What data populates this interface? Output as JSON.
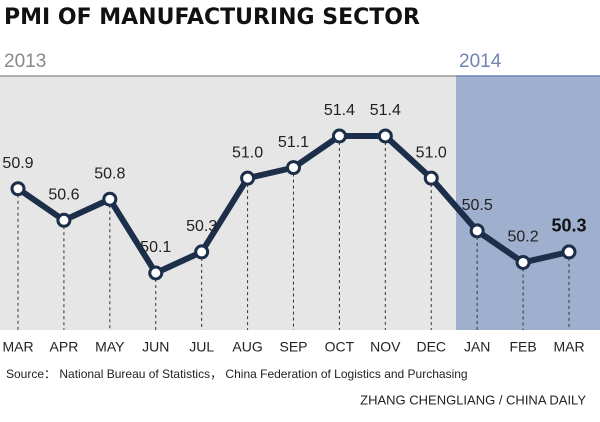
{
  "chart_data": {
    "type": "line",
    "title": "PMI OF MANUFACTURING SECTOR",
    "year_labels": [
      "2013",
      "2014"
    ],
    "categories": [
      "MAR",
      "APR",
      "MAY",
      "JUN",
      "JUL",
      "AUG",
      "SEP",
      "OCT",
      "NOV",
      "DEC",
      "JAN",
      "FEB",
      "MAR"
    ],
    "values": [
      50.9,
      50.6,
      50.8,
      50.1,
      50.3,
      51.0,
      51.1,
      51.4,
      51.4,
      51.0,
      50.5,
      50.2,
      50.3
    ],
    "value_labels": [
      "50.9",
      "50.6",
      "50.8",
      "50.1",
      "50.3",
      "51.0",
      "51.1",
      "51.4",
      "51.4",
      "51.0",
      "50.5",
      "50.2",
      "50.3"
    ],
    "color": "#1c2e4a",
    "source": "Source： National Bureau of Statistics， China Federation of Logistics and Purchasing",
    "credit": "ZHANG CHENGLIANG / CHINA DAILY"
  }
}
